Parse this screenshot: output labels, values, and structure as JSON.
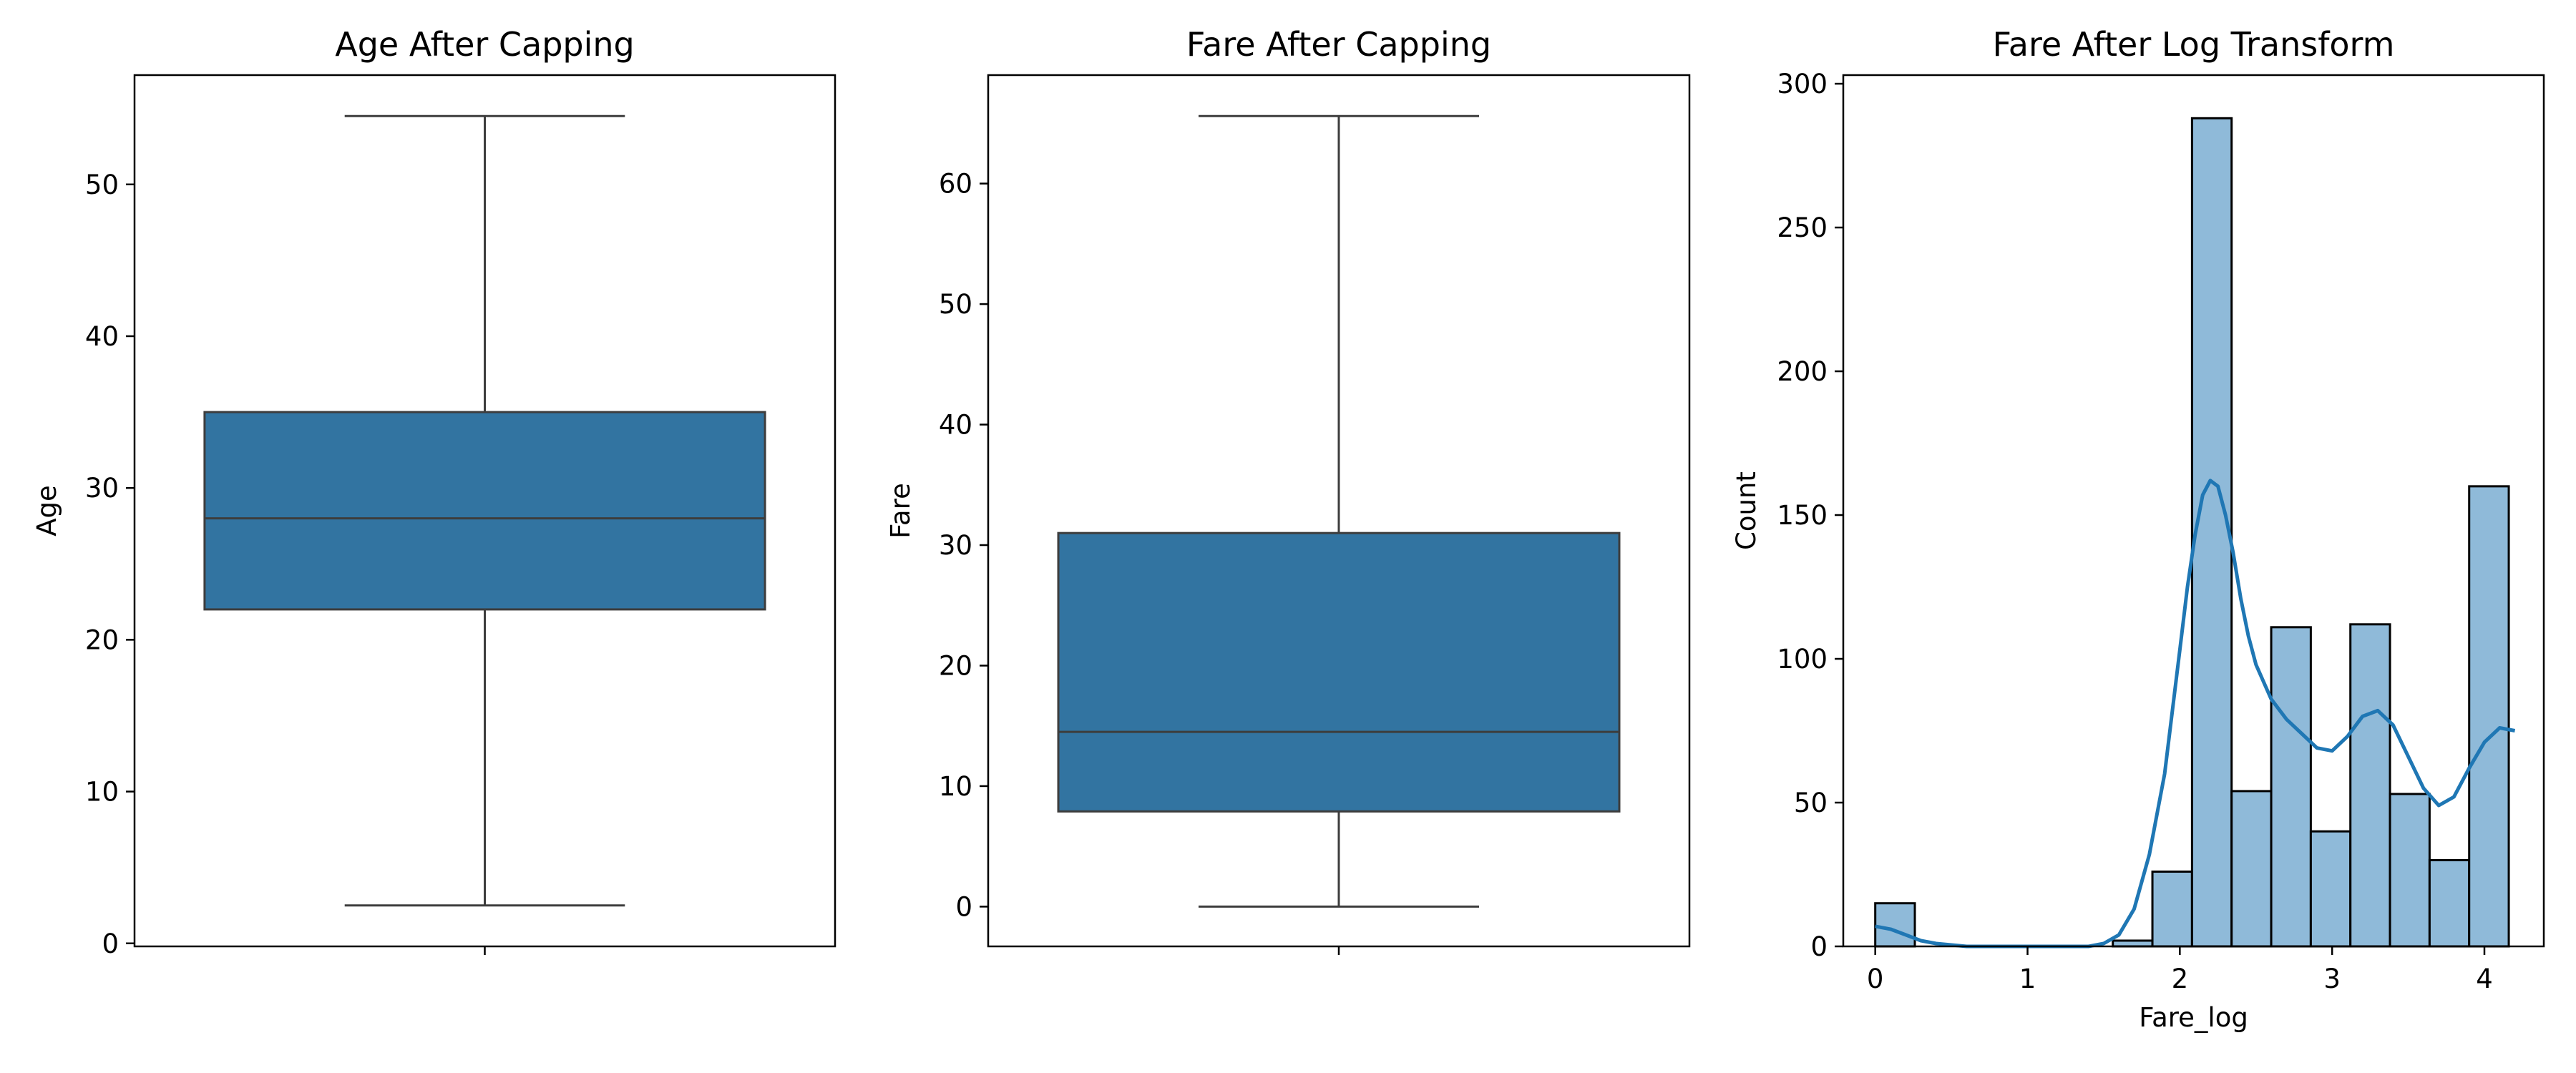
{
  "chart_data": [
    {
      "type": "box",
      "title": "Age After Capping",
      "xlabel": "",
      "ylabel": "Age",
      "ylim": [
        -0.2,
        57.2
      ],
      "yticks": [
        0,
        10,
        20,
        30,
        40,
        50
      ],
      "box": {
        "whisker_low": 2.5,
        "q1": 22.0,
        "median": 28.0,
        "q3": 35.0,
        "whisker_high": 54.5
      },
      "color": "#3274a1",
      "grid": false
    },
    {
      "type": "box",
      "title": "Fare After Capping",
      "xlabel": "",
      "ylabel": "Fare",
      "ylim": [
        -3.3,
        69.0
      ],
      "yticks": [
        0,
        10,
        20,
        30,
        40,
        50,
        60
      ],
      "box": {
        "whisker_low": 0.0,
        "q1": 7.9,
        "median": 14.5,
        "q3": 31.0,
        "whisker_high": 65.6
      },
      "color": "#3274a1",
      "grid": false
    },
    {
      "type": "histogram",
      "title": "Fare After Log Transform",
      "xlabel": "Fare_log",
      "ylabel": "Count",
      "xlim": [
        -0.21,
        4.39
      ],
      "ylim": [
        0,
        303
      ],
      "xticks": [
        0,
        1,
        2,
        3,
        4
      ],
      "yticks": [
        0,
        50,
        100,
        150,
        200,
        250,
        300
      ],
      "bins": [
        {
          "x0": 0.0,
          "x1": 0.26,
          "count": 15
        },
        {
          "x0": 0.26,
          "x1": 0.52,
          "count": 0
        },
        {
          "x0": 0.52,
          "x1": 0.78,
          "count": 0
        },
        {
          "x0": 0.78,
          "x1": 1.04,
          "count": 0
        },
        {
          "x0": 1.04,
          "x1": 1.3,
          "count": 0
        },
        {
          "x0": 1.3,
          "x1": 1.56,
          "count": 0
        },
        {
          "x0": 1.56,
          "x1": 1.82,
          "count": 2
        },
        {
          "x0": 1.82,
          "x1": 2.08,
          "count": 26
        },
        {
          "x0": 2.08,
          "x1": 2.34,
          "count": 288
        },
        {
          "x0": 2.34,
          "x1": 2.6,
          "count": 54
        },
        {
          "x0": 2.6,
          "x1": 2.86,
          "count": 111
        },
        {
          "x0": 2.86,
          "x1": 3.12,
          "count": 40
        },
        {
          "x0": 3.12,
          "x1": 3.38,
          "count": 112
        },
        {
          "x0": 3.38,
          "x1": 3.64,
          "count": 53
        },
        {
          "x0": 3.64,
          "x1": 3.9,
          "count": 30
        },
        {
          "x0": 3.9,
          "x1": 4.16,
          "count": 160
        }
      ],
      "bar_color": "#8fbad9",
      "bar_edge": "#000000",
      "kde": {
        "color": "#1f77b4",
        "x": [
          0.0,
          0.1,
          0.2,
          0.3,
          0.4,
          0.6,
          0.8,
          1.0,
          1.2,
          1.4,
          1.5,
          1.6,
          1.7,
          1.8,
          1.9,
          2.0,
          2.05,
          2.1,
          2.15,
          2.2,
          2.25,
          2.3,
          2.35,
          2.4,
          2.45,
          2.5,
          2.6,
          2.7,
          2.8,
          2.9,
          3.0,
          3.1,
          3.2,
          3.3,
          3.4,
          3.5,
          3.6,
          3.7,
          3.8,
          3.9,
          4.0,
          4.1,
          4.2
        ],
        "y": [
          7,
          6,
          4,
          2,
          1,
          0,
          0,
          0,
          0,
          0,
          1,
          4,
          13,
          32,
          60,
          103,
          125,
          143,
          157,
          162,
          160,
          150,
          137,
          121,
          108,
          98,
          86,
          79,
          74,
          69,
          68,
          73,
          80,
          82,
          77,
          66,
          55,
          49,
          52,
          62,
          71,
          76,
          75
        ]
      },
      "grid": false
    }
  ]
}
